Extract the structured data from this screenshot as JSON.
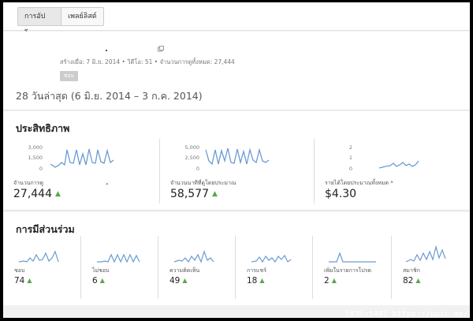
{
  "tabs": [
    {
      "label": "การอัปโหลด",
      "selected": true
    },
    {
      "label": "เพลย์ลิสต์",
      "selected": false
    }
  ],
  "video": {
    "meta": "สร้างเมื่อ: 7 มิ.ย. 2014  •  วิดีโอ: 51  •  จำนวนการดูทั้งหมด: 27,444",
    "badge": "ซ่อน",
    "range": "28 วันล่าสุด (6 มิ.ย. 2014 – 3 ก.ค. 2014)"
  },
  "performance": {
    "title": "ประสิทธิภาพ",
    "cards": [
      {
        "label": "จำนวนการดู",
        "value": "27,444",
        "trend": "▲",
        "extra": "-",
        "ticks": [
          "3,000",
          "1,500",
          "0"
        ],
        "ymax": 3000
      },
      {
        "label": "จำนวนนาทีที่ดูโดยประมาณ",
        "value": "58,577",
        "trend": "▲",
        "ticks": [
          "5,000",
          "2,500",
          "0"
        ],
        "ymax": 5000
      },
      {
        "label": "รายได้โดยประมาณทั้งหมด *",
        "value": "$4.30",
        "trend": "",
        "ticks": [
          "2",
          "1",
          "0"
        ],
        "ymax": 2
      }
    ]
  },
  "engagement": {
    "title": "การมีส่วนร่วม",
    "cards": [
      {
        "label": "ชอบ",
        "value": "74",
        "trend": "▲"
      },
      {
        "label": "ไม่ชอบ",
        "value": "6",
        "trend": "▲"
      },
      {
        "label": "ความคิดเห็น",
        "value": "49",
        "trend": "▲"
      },
      {
        "label": "การแชร์",
        "value": "18",
        "trend": "▲"
      },
      {
        "label": "เพิ่มในรายการโปรด",
        "value": "2",
        "trend": "▲"
      },
      {
        "label": "สมาชิก",
        "value": "82",
        "trend": "▲"
      }
    ]
  },
  "watermark": "[836x540] https://upic.me/",
  "colors": {
    "line": "#6b9bd2",
    "trend_up": "#5aa64c"
  }
}
